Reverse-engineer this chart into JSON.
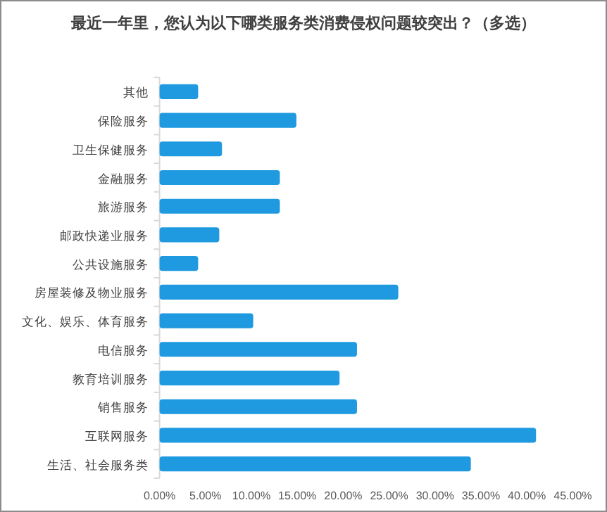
{
  "chart_data": {
    "type": "bar",
    "orientation": "horizontal",
    "title": "最近一年里，您认为以下哪类服务类消费侵权问题较突出？（多选）",
    "categories": [
      "其他",
      "保险服务",
      "卫生保健服务",
      "金融服务",
      "旅游服务",
      "邮政快递业服务",
      "公共设施服务",
      "房屋装修及物业服务",
      "文化、娱乐、体育服务",
      "电信服务",
      "教育培训服务",
      "销售服务",
      "互联网服务",
      "生活、社会服务类"
    ],
    "values": [
      4.2,
      14.9,
      6.8,
      13.1,
      13.1,
      6.5,
      4.2,
      26.0,
      10.2,
      21.5,
      19.6,
      21.5,
      41.0,
      33.9
    ],
    "color": "#1f9ae0",
    "xlim": [
      0,
      45
    ],
    "xticks": [
      {
        "value": 0,
        "label": "0.00%"
      },
      {
        "value": 5,
        "label": "5.00%"
      },
      {
        "value": 10,
        "label": "10.00%"
      },
      {
        "value": 15,
        "label": "15.00%"
      },
      {
        "value": 20,
        "label": "20.00%"
      },
      {
        "value": 25,
        "label": "25.00%"
      },
      {
        "value": 30,
        "label": "30.00%"
      },
      {
        "value": 35,
        "label": "35.00%"
      },
      {
        "value": 40,
        "label": "40.00%"
      },
      {
        "value": 45,
        "label": "45.00%"
      }
    ]
  }
}
